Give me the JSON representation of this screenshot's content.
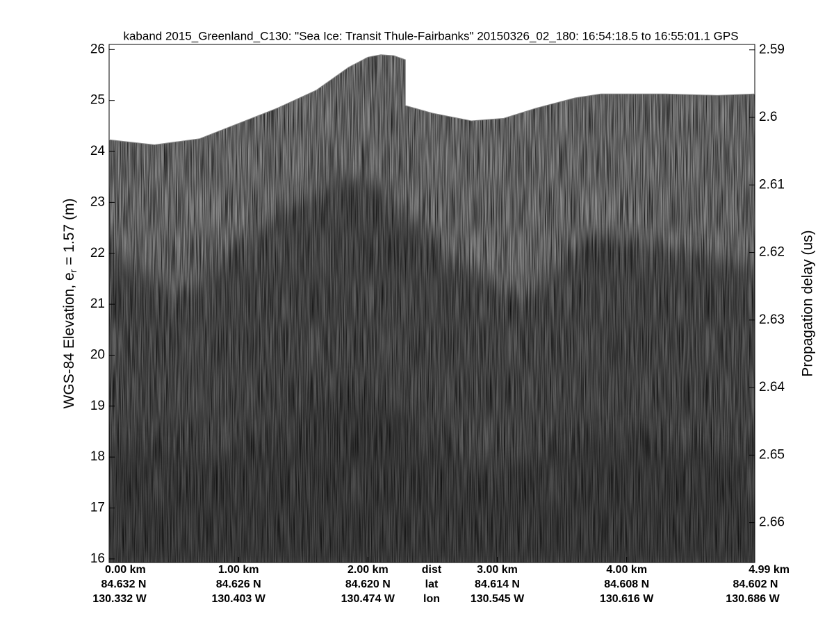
{
  "chart_data": {
    "type": "echogram",
    "title": "kaband 2015_Greenland_C130: \"Sea Ice: Transit Thule-Fairbanks\"  20150326_02_180: 16:54:18.5 to 16:55:01.1 GPS",
    "ylabel": [
      "WGS-84 Elevation, e",
      "r",
      " = 1.57 (m)"
    ],
    "y2label": "Propagation delay (us)",
    "x": [
      0,
      0.35,
      0.7,
      1.0,
      1.3,
      1.6,
      1.85,
      2.0,
      2.1,
      2.2,
      2.29,
      2.29,
      2.5,
      2.8,
      3.05,
      3.3,
      3.6,
      3.8,
      4.3,
      4.7,
      4.99
    ],
    "values": [
      24.23,
      24.13,
      24.25,
      24.55,
      24.85,
      25.2,
      25.65,
      25.85,
      25.9,
      25.88,
      25.8,
      24.9,
      24.75,
      24.6,
      24.65,
      24.85,
      25.05,
      25.13,
      25.13,
      25.1,
      25.13
    ],
    "color": "#8a8a8a",
    "xlim": [
      0,
      4.99
    ],
    "xticks": [
      {
        "value": 0,
        "label": "0.00 km"
      },
      {
        "value": 1,
        "label": "1.00 km"
      },
      {
        "value": 2,
        "label": "2.00 km"
      },
      {
        "value": 3,
        "label": "3.00 km"
      },
      {
        "value": 4,
        "label": "4.00 km"
      },
      {
        "value": 4.99,
        "label": "4.99 km"
      }
    ],
    "xtick_lat": [
      "84.632 N",
      "84.626 N",
      "84.620 N",
      "84.614 N",
      "84.608 N",
      "84.602 N"
    ],
    "xtick_lon": [
      "130.332 W",
      "130.403 W",
      "130.474 W",
      "130.545 W",
      "130.616 W",
      "130.686 W"
    ],
    "x_row_labels": [
      "dist",
      "lat",
      "lon"
    ],
    "ylim": [
      15.93,
      26.1
    ],
    "yticks": [
      16,
      17,
      18,
      19,
      20,
      21,
      22,
      23,
      24,
      25,
      26
    ],
    "y2lim": [
      2.6659,
      2.5892
    ],
    "y2ticks": [
      2.59,
      2.6,
      2.61,
      2.62,
      2.63,
      2.64,
      2.65,
      2.66
    ]
  }
}
